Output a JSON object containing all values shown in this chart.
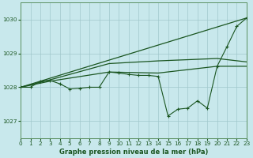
{
  "background_color": "#c8e8ec",
  "grid_color": "#a0c8cc",
  "line_color": "#1a5520",
  "xlabel": "Graphe pression niveau de la mer (hPa)",
  "xlim": [
    0,
    23
  ],
  "ylim": [
    1026.5,
    1030.5
  ],
  "yticks": [
    1027,
    1028,
    1029,
    1030
  ],
  "xticks": [
    0,
    1,
    2,
    3,
    4,
    5,
    6,
    7,
    8,
    9,
    10,
    11,
    12,
    13,
    14,
    15,
    16,
    17,
    18,
    19,
    20,
    21,
    22,
    23
  ],
  "line_straight": {
    "x": [
      0,
      23
    ],
    "y": [
      1028.0,
      1030.05
    ]
  },
  "line_upper_env": {
    "x": [
      0,
      3,
      9,
      14,
      20,
      23
    ],
    "y": [
      1028.0,
      1028.22,
      1028.7,
      1028.78,
      1028.85,
      1028.75
    ]
  },
  "line_lower_env": {
    "x": [
      0,
      3,
      9,
      14,
      20,
      23
    ],
    "y": [
      1028.0,
      1028.18,
      1028.45,
      1028.42,
      1028.62,
      1028.62
    ]
  },
  "main_line": {
    "x": [
      0,
      1,
      2,
      3,
      4,
      5,
      6,
      7,
      8,
      9,
      10,
      11,
      12,
      13,
      14,
      15,
      16,
      17,
      18,
      19,
      20,
      21,
      22,
      23
    ],
    "y": [
      1028.0,
      1028.0,
      1028.18,
      1028.2,
      1028.1,
      1027.95,
      1027.97,
      1028.0,
      1028.0,
      1028.45,
      1028.42,
      1028.38,
      1028.35,
      1028.35,
      1028.32,
      1027.15,
      1027.35,
      1027.38,
      1027.6,
      1027.38,
      1028.62,
      1029.2,
      1029.8,
      1030.05
    ]
  }
}
